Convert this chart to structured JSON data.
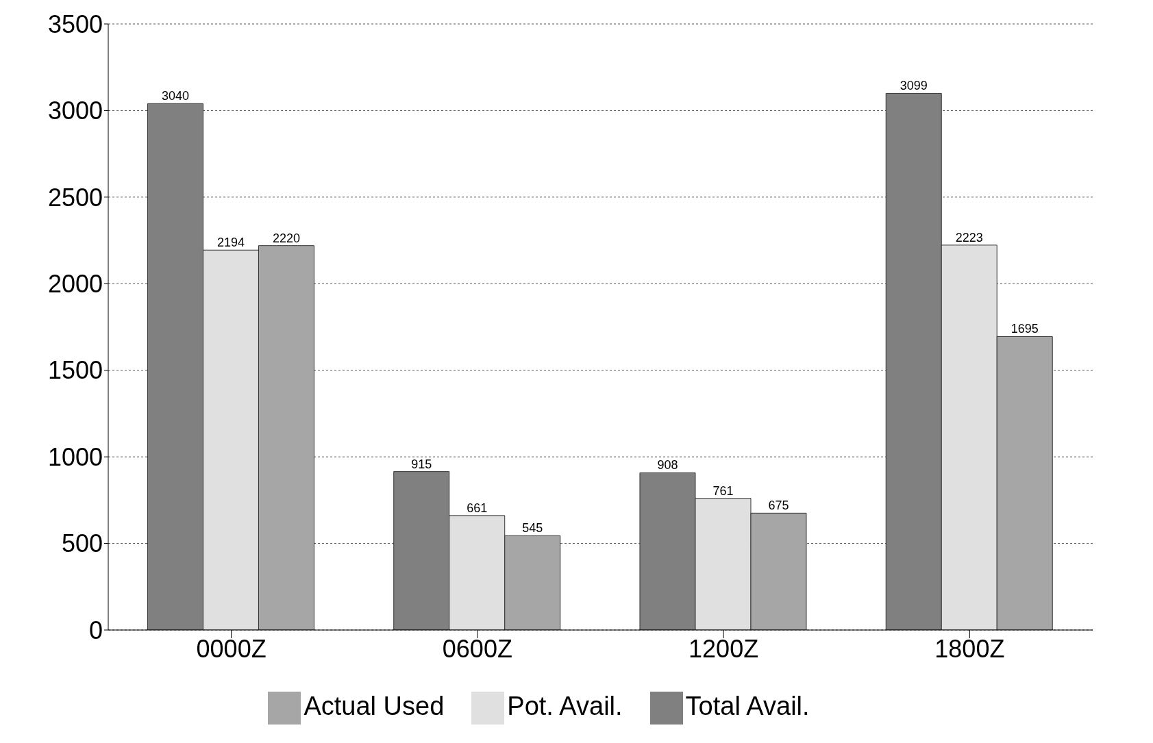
{
  "chart_data": {
    "type": "bar",
    "categories": [
      "0000Z",
      "0600Z",
      "1200Z",
      "1800Z"
    ],
    "series": [
      {
        "name": "Total Avail.",
        "color": "#808080",
        "values": [
          3040,
          915,
          908,
          3099
        ]
      },
      {
        "name": "Pot. Avail.",
        "color": "#e0e0e0",
        "values": [
          2194,
          661,
          761,
          2223
        ]
      },
      {
        "name": "Actual Used",
        "color": "#a6a6a6",
        "values": [
          2220,
          545,
          675,
          1695
        ]
      }
    ],
    "ylim": [
      0,
      3500
    ],
    "yticks": [
      0,
      500,
      1000,
      1500,
      2000,
      2500,
      3000,
      3500
    ],
    "grid": "y",
    "legend": "bottom",
    "data_labels": true
  }
}
